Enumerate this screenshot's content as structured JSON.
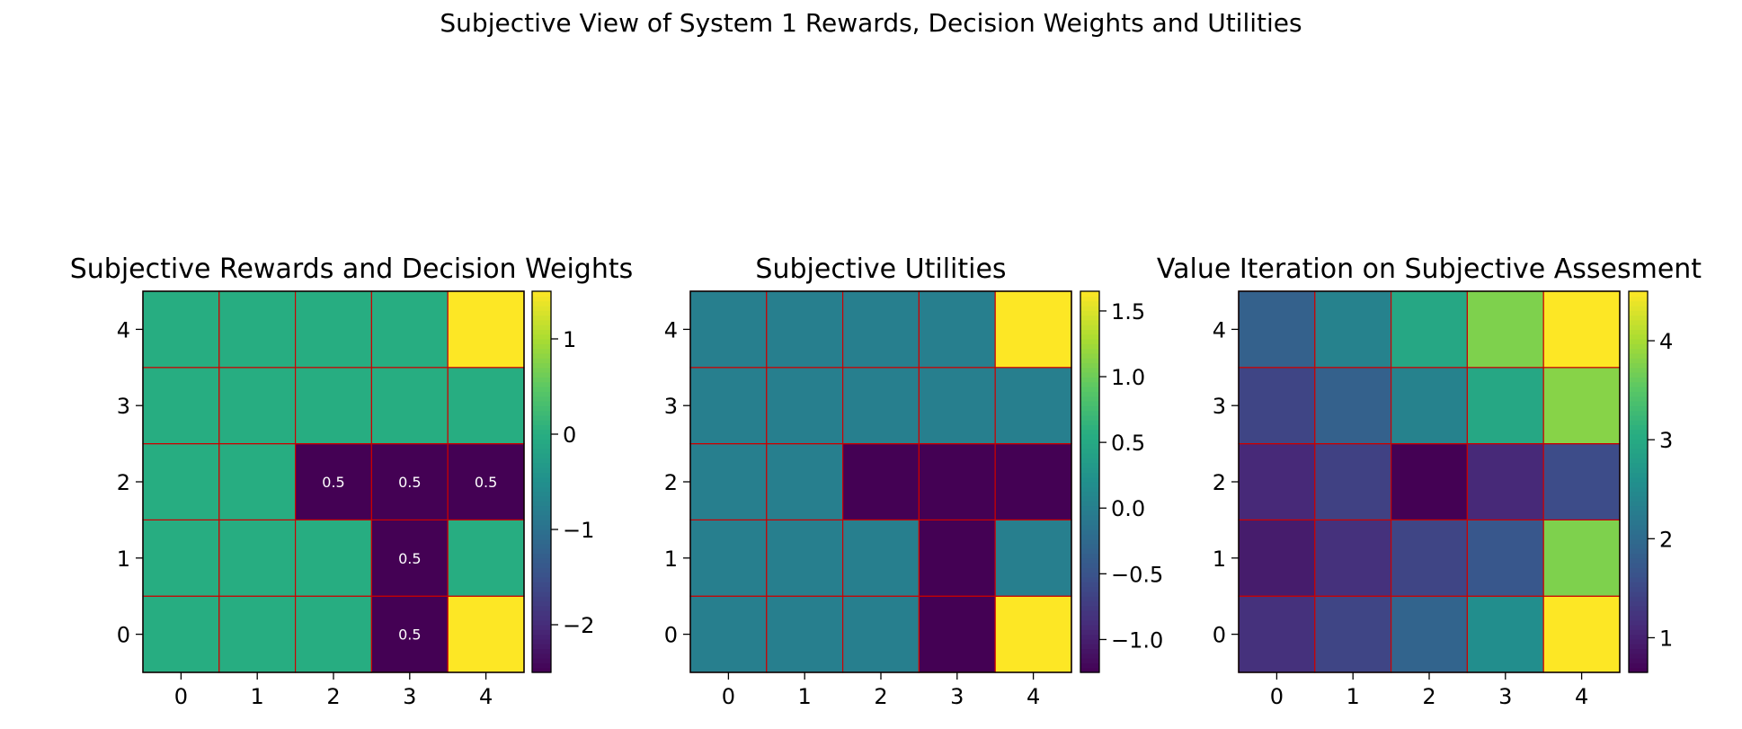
{
  "suptitle": "Subjective View of System 1 Rewards, Decision Weights and Utilities",
  "grid_line_color": "#cc0000",
  "colormap": "viridis",
  "chart_data": [
    {
      "type": "heatmap",
      "title": "Subjective Rewards and Decision Weights",
      "x_ticks": [
        "0",
        "1",
        "2",
        "3",
        "4"
      ],
      "y_ticks": [
        "0",
        "1",
        "2",
        "3",
        "4"
      ],
      "origin": "lower",
      "values": [
        [
          0,
          0,
          0,
          -2.5,
          1.5
        ],
        [
          0,
          0,
          0,
          -2.5,
          0
        ],
        [
          0,
          0,
          -2.5,
          -2.5,
          -2.5
        ],
        [
          0,
          0,
          0,
          0,
          0
        ],
        [
          0,
          0,
          0,
          0,
          1.5
        ]
      ],
      "annotations": [
        {
          "row": 0,
          "col": 3,
          "text": "0.5"
        },
        {
          "row": 1,
          "col": 3,
          "text": "0.5"
        },
        {
          "row": 2,
          "col": 2,
          "text": "0.5"
        },
        {
          "row": 2,
          "col": 3,
          "text": "0.5"
        },
        {
          "row": 2,
          "col": 4,
          "text": "0.5"
        }
      ],
      "vmin": -2.5,
      "vmax": 1.5,
      "colorbar_ticks": [
        1,
        0,
        -1,
        -2
      ],
      "colorbar_labels": [
        "1",
        "0",
        "−1",
        "−2"
      ]
    },
    {
      "type": "heatmap",
      "title": "Subjective Utilities",
      "x_ticks": [
        "0",
        "1",
        "2",
        "3",
        "4"
      ],
      "y_ticks": [
        "0",
        "1",
        "2",
        "3",
        "4"
      ],
      "origin": "lower",
      "values": [
        [
          0,
          0,
          0,
          -1.25,
          1.65
        ],
        [
          0,
          0,
          0,
          -1.25,
          0
        ],
        [
          0,
          0,
          -1.25,
          -1.25,
          -1.25
        ],
        [
          0,
          0,
          0,
          0,
          0
        ],
        [
          0,
          0,
          0,
          0,
          1.65
        ]
      ],
      "annotations": [],
      "vmin": -1.25,
      "vmax": 1.65,
      "colorbar_ticks": [
        1.5,
        1.0,
        0.5,
        0.0,
        -0.5,
        -1.0
      ],
      "colorbar_labels": [
        "1.5",
        "1.0",
        "0.5",
        "0.0",
        "−0.5",
        "−1.0"
      ]
    },
    {
      "type": "heatmap",
      "title": "Value Iteration on Subjective Assesment",
      "x_ticks": [
        "0",
        "1",
        "2",
        "3",
        "4"
      ],
      "y_ticks": [
        "0",
        "1",
        "2",
        "3",
        "4"
      ],
      "origin": "lower",
      "values": [
        [
          1.2,
          1.45,
          1.9,
          2.55,
          4.5
        ],
        [
          0.95,
          1.2,
          1.45,
          1.7,
          3.75
        ],
        [
          1.1,
          1.4,
          0.65,
          1.1,
          1.55
        ],
        [
          1.45,
          1.85,
          2.35,
          2.95,
          3.8
        ],
        [
          1.85,
          2.35,
          2.95,
          3.75,
          4.5
        ]
      ],
      "annotations": [],
      "vmin": 0.65,
      "vmax": 4.5,
      "colorbar_ticks": [
        4,
        3,
        2,
        1
      ],
      "colorbar_labels": [
        "4",
        "3",
        "2",
        "1"
      ]
    }
  ]
}
